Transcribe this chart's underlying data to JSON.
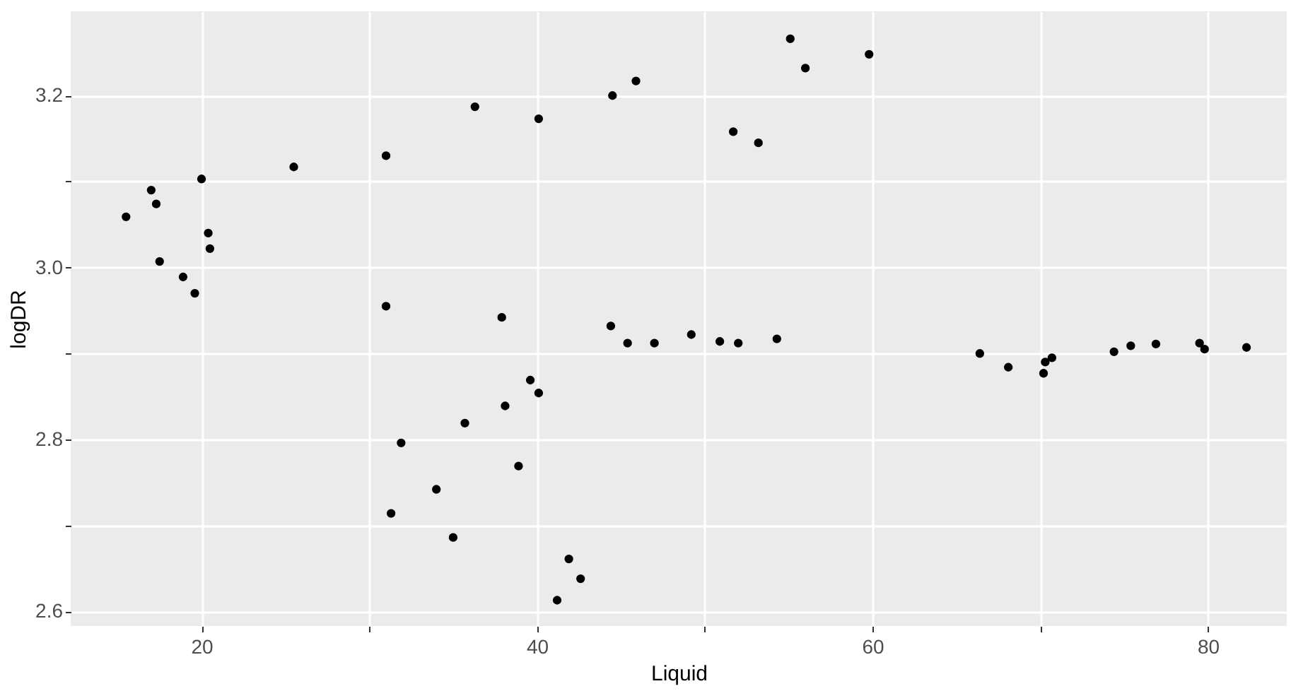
{
  "chart_data": {
    "type": "scatter",
    "xlabel": "Liquid",
    "ylabel": "logDR",
    "x": [
      15.5,
      17.0,
      17.3,
      17.5,
      18.9,
      19.6,
      20.0,
      20.4,
      20.5,
      25.5,
      31.0,
      31.0,
      36.3,
      40.1,
      44.5,
      45.9,
      37.9,
      44.4,
      45.4,
      51.7,
      53.2,
      55.1,
      56.0,
      59.8,
      47.0,
      49.2,
      50.9,
      52.0,
      54.3,
      66.4,
      68.1,
      70.2,
      70.3,
      70.7,
      74.4,
      75.4,
      76.9,
      79.5,
      79.8,
      82.3,
      31.9,
      35.7,
      38.1,
      39.6,
      40.1,
      38.9,
      34.0,
      31.3,
      35.0,
      41.9,
      42.6,
      41.2
    ],
    "series": [
      {
        "color": "#000000",
        "values": [
          3.059,
          3.09,
          3.074,
          3.007,
          2.989,
          2.97,
          3.103,
          3.04,
          3.022,
          3.117,
          3.13,
          2.955,
          3.187,
          3.173,
          3.2,
          3.217,
          2.942,
          2.932,
          2.912,
          3.158,
          3.145,
          3.266,
          3.232,
          3.248,
          2.912,
          2.922,
          2.914,
          2.912,
          2.917,
          2.9,
          2.884,
          2.877,
          2.89,
          2.895,
          2.902,
          2.909,
          2.911,
          2.912,
          2.905,
          2.907,
          2.796,
          2.819,
          2.839,
          2.869,
          2.854,
          2.769,
          2.742,
          2.714,
          2.686,
          2.661,
          2.638,
          2.613
        ]
      }
    ],
    "xlim": [
      12.2,
      84.7
    ],
    "ylim": [
      2.583,
      3.298
    ],
    "xticks": [
      20,
      {
        "value": 30,
        "label": null
      },
      40,
      {
        "value": 50,
        "label": null
      },
      60,
      {
        "value": 70,
        "label": null
      },
      80
    ],
    "yticks": [
      2.6,
      {
        "value": 2.7,
        "label": null
      },
      2.8,
      {
        "value": 2.9,
        "label": null
      },
      {
        "value": 3.0,
        "label": "3.0"
      },
      {
        "value": 3.1,
        "label": null
      },
      3.2
    ],
    "grid": true,
    "marker": "circle",
    "legend": false
  }
}
